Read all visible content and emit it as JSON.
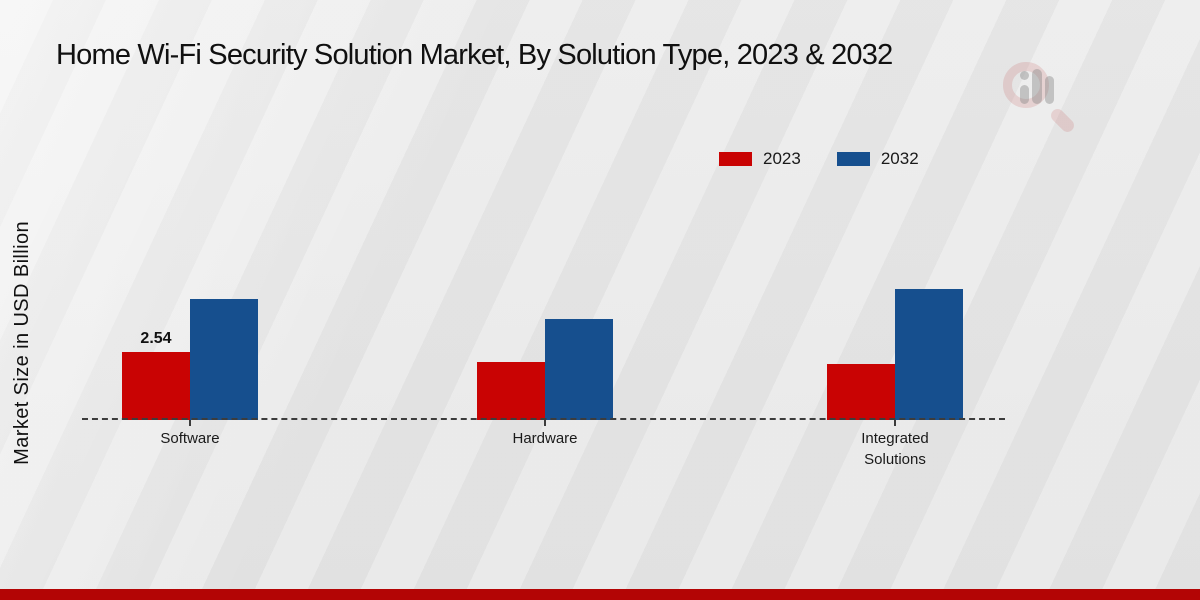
{
  "title": "Home Wi-Fi Security Solution Market, By Solution Type, 2023 & 2032",
  "y_axis_label": "Market Size in USD Billion",
  "legend": {
    "items": [
      {
        "label": "2023",
        "color": "#c90303"
      },
      {
        "label": "2032",
        "color": "#164f8e"
      }
    ]
  },
  "chart_data": {
    "type": "bar",
    "categories": [
      "Software",
      "Hardware",
      "Integrated Solutions"
    ],
    "series": [
      {
        "name": "2023",
        "color": "#c90303",
        "values": [
          2.54,
          2.17,
          2.09
        ]
      },
      {
        "name": "2032",
        "color": "#164f8e",
        "values": [
          4.52,
          3.77,
          4.89
        ]
      }
    ],
    "data_labels": [
      {
        "series_index": 0,
        "category_index": 0,
        "text": "2.54"
      }
    ],
    "title": "Home Wi-Fi Security Solution Market, By Solution Type, 2023 & 2032",
    "xlabel": "",
    "ylabel": "Market Size in USD Billion",
    "ylim": [
      0,
      5.5
    ],
    "grid": false,
    "legend_position": "top-right",
    "baseline_style": "dashed",
    "y_axis_ticks_visible": false
  },
  "colors": {
    "bar_2023": "#c90303",
    "bar_2032": "#164f8e",
    "bottom_strip": "#b30505",
    "background": "#e9e9e9",
    "text": "#1a1a1a"
  },
  "watermark": {
    "icon": "magnifier-bar-chart-logo"
  }
}
